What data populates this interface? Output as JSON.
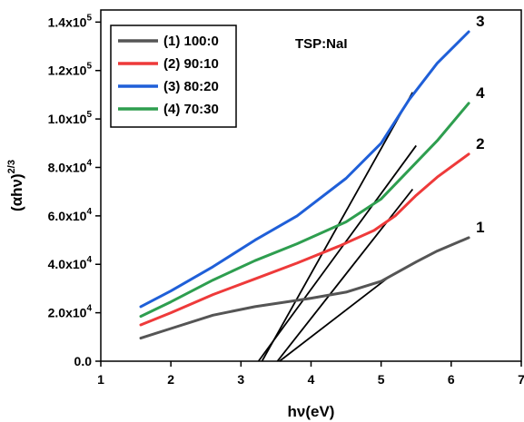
{
  "chart_data": {
    "type": "line",
    "xlabel": "hν(eV)",
    "ylabel_base": "(αhν)",
    "ylabel_exp": "2/3",
    "xlim": [
      1,
      7
    ],
    "ylim": [
      0,
      145000
    ],
    "x_ticks": [
      1,
      2,
      3,
      4,
      5,
      6,
      7
    ],
    "y_ticks": [
      {
        "value": 0,
        "label": "0.0",
        "exp": ""
      },
      {
        "value": 20000,
        "label": "2.0x10",
        "exp": "4"
      },
      {
        "value": 40000,
        "label": "4.0x10",
        "exp": "4"
      },
      {
        "value": 60000,
        "label": "6.0x10",
        "exp": "4"
      },
      {
        "value": 80000,
        "label": "8.0x10",
        "exp": "4"
      },
      {
        "value": 100000,
        "label": "1.0x10",
        "exp": "5"
      },
      {
        "value": 120000,
        "label": "1.2x10",
        "exp": "5"
      },
      {
        "value": 140000,
        "label": "1.4x10",
        "exp": "5"
      }
    ],
    "annotation": "TSP:NaI",
    "series": [
      {
        "name": "(1) 100:0",
        "color": "#555555",
        "end_label": "1",
        "points": [
          [
            1.57,
            9500
          ],
          [
            2.0,
            13500
          ],
          [
            2.6,
            19000
          ],
          [
            3.2,
            22500
          ],
          [
            4.0,
            26000
          ],
          [
            4.5,
            28500
          ],
          [
            5.0,
            33000
          ],
          [
            5.5,
            41000
          ],
          [
            5.8,
            45500
          ],
          [
            6.25,
            51000
          ]
        ]
      },
      {
        "name": "(2) 90:10",
        "color": "#ee3a3a",
        "end_label": "2",
        "points": [
          [
            1.57,
            15000
          ],
          [
            2.0,
            20000
          ],
          [
            2.6,
            27500
          ],
          [
            3.2,
            34000
          ],
          [
            3.8,
            40500
          ],
          [
            4.4,
            47500
          ],
          [
            4.9,
            54000
          ],
          [
            5.2,
            60000
          ],
          [
            5.5,
            68500
          ],
          [
            5.8,
            76000
          ],
          [
            6.25,
            85500
          ]
        ]
      },
      {
        "name": "(3) 80:20",
        "color": "#1f5fd8",
        "end_label": "3",
        "points": [
          [
            1.57,
            22500
          ],
          [
            2.0,
            29000
          ],
          [
            2.6,
            39000
          ],
          [
            3.2,
            50000
          ],
          [
            3.8,
            60000
          ],
          [
            4.5,
            75500
          ],
          [
            5.0,
            90000
          ],
          [
            5.4,
            108000
          ],
          [
            5.8,
            123000
          ],
          [
            6.25,
            136000
          ]
        ]
      },
      {
        "name": "(4) 70:30",
        "color": "#2e9e4f",
        "end_label": "4",
        "points": [
          [
            1.57,
            18500
          ],
          [
            2.0,
            24500
          ],
          [
            2.6,
            33500
          ],
          [
            3.2,
            41500
          ],
          [
            3.8,
            48500
          ],
          [
            4.5,
            57500
          ],
          [
            5.0,
            67000
          ],
          [
            5.4,
            79000
          ],
          [
            5.8,
            91000
          ],
          [
            6.25,
            106500
          ]
        ]
      }
    ],
    "fit_lines": [
      {
        "color": "#000000",
        "points": [
          [
            3.3,
            0
          ],
          [
            5.45,
            111000
          ]
        ]
      },
      {
        "color": "#000000",
        "points": [
          [
            3.25,
            0
          ],
          [
            5.5,
            89000
          ]
        ]
      },
      {
        "color": "#000000",
        "points": [
          [
            3.52,
            0
          ],
          [
            5.45,
            71000
          ]
        ]
      },
      {
        "color": "#000000",
        "points": [
          [
            3.55,
            0
          ],
          [
            5.1,
            34500
          ]
        ]
      }
    ]
  }
}
